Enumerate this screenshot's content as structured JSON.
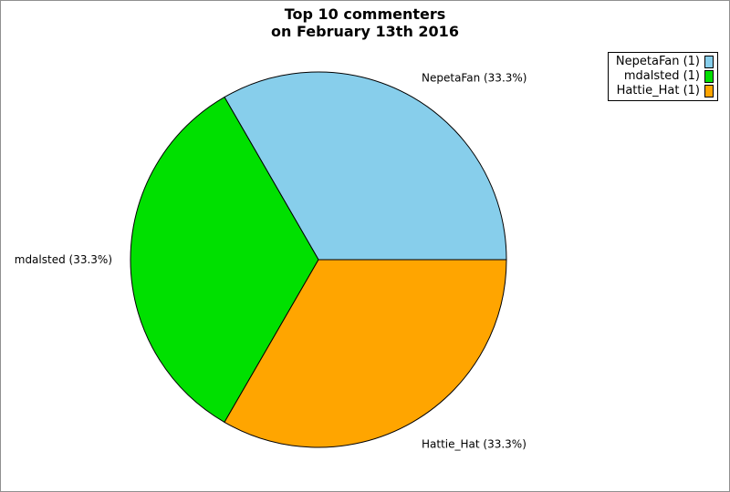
{
  "page": {
    "background": "#ffffff",
    "border_color": "#909090"
  },
  "title": {
    "line1": "Top 10 commenters",
    "line2": "on February 13th 2016"
  },
  "chart_data": {
    "type": "pie",
    "title": "Top 10 commenters on February 13th 2016",
    "legend_position": "top-right",
    "start_angle_deg": 0,
    "direction": "counterclockwise",
    "total": 3,
    "outline_color": "#000000",
    "slices": [
      {
        "name": "NepetaFan",
        "value": 1,
        "percent": 33.3,
        "callout": "NepetaFan (33.3%)",
        "legend_label": "NepetaFan (1)",
        "color": "#87CEEB"
      },
      {
        "name": "mdalsted",
        "value": 1,
        "percent": 33.3,
        "callout": "mdalsted (33.3%)",
        "legend_label": "mdalsted (1)",
        "color": "#00E000"
      },
      {
        "name": "Hattie_Hat",
        "value": 1,
        "percent": 33.3,
        "callout": "Hattie_Hat (33.3%)",
        "legend_label": "Hattie_Hat (1)",
        "color": "#FFA500"
      }
    ]
  }
}
